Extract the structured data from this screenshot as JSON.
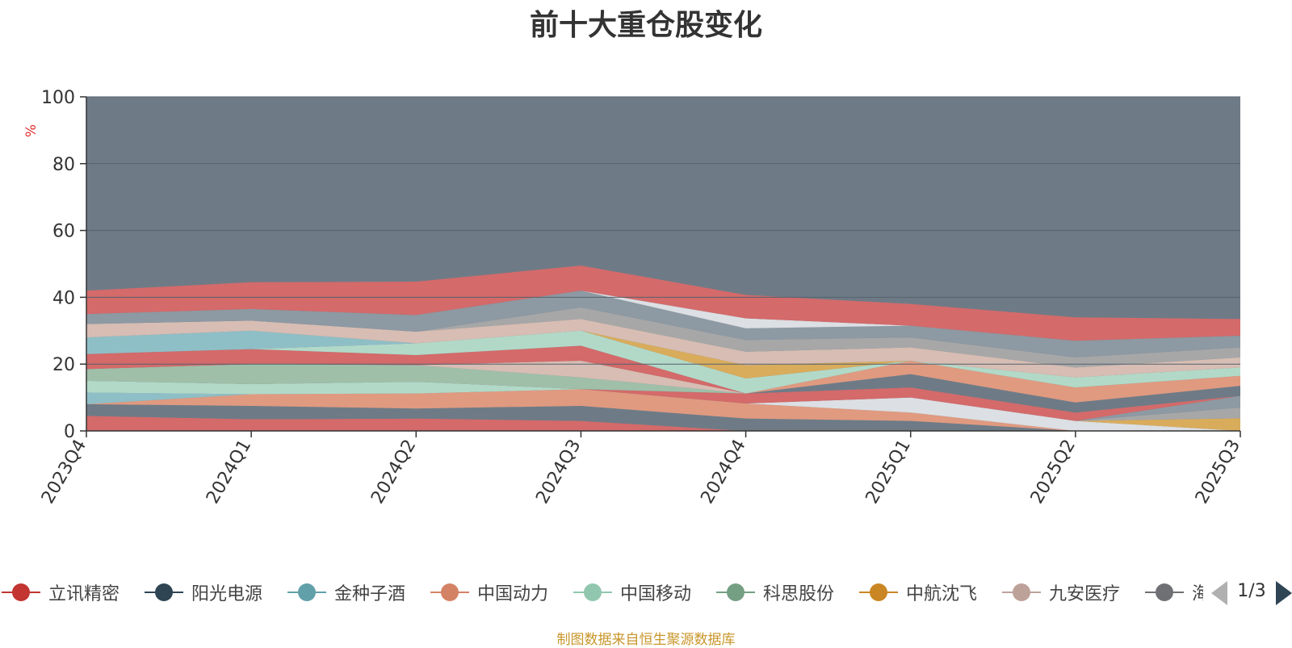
{
  "title": "前十大重仓股变化",
  "source_note": "制图数据来自恒生聚源数据库",
  "legend_page": "1/3",
  "chart_data": {
    "type": "area",
    "title": "前十大重仓股变化",
    "ylabel": "%",
    "ylim": [
      0,
      100
    ],
    "yticks": [
      0,
      20,
      40,
      60,
      80,
      100
    ],
    "grid": true,
    "legend_position": "bottom",
    "x": [
      "2023Q4",
      "2024Q1",
      "2024Q2",
      "2024Q3",
      "2024Q4",
      "2025Q1",
      "2025Q2",
      "2025Q3"
    ],
    "background_color": "#6e7b87",
    "series": [
      {
        "color": "#d46a6a",
        "values": [
          4.5,
          3.5,
          3.7,
          3.0,
          0.0,
          0.0,
          0.0,
          0.0
        ]
      },
      {
        "color": "#6e7b87",
        "values": [
          3.5,
          4.0,
          3.0,
          4.5,
          3.7,
          3.0,
          0.0,
          0.0
        ]
      },
      {
        "color": "#e09a80",
        "values": [
          0.0,
          3.5,
          4.5,
          5.0,
          4.5,
          2.5,
          0.0,
          0.0
        ]
      },
      {
        "color": "#dcdfe3",
        "values": [
          0.0,
          0.0,
          0.0,
          0.0,
          0.0,
          4.5,
          3.0,
          0.0
        ]
      },
      {
        "color": "#d9ac5c",
        "values": [
          0.0,
          0.0,
          0.0,
          0.0,
          0.0,
          0.0,
          0.0,
          3.8
        ]
      },
      {
        "color": "#a7a7a7",
        "values": [
          0.0,
          0.0,
          0.0,
          0.0,
          0.0,
          0.0,
          0.0,
          3.2
        ]
      },
      {
        "color": "#8d99a3",
        "values": [
          0.0,
          0.0,
          0.0,
          0.0,
          0.0,
          0.0,
          0.0,
          3.5
        ]
      },
      {
        "color": "#8fbfc6",
        "values": [
          3.5,
          0.0,
          0.0,
          0.0,
          0.0,
          0.0,
          0.0,
          0.0
        ]
      },
      {
        "color": "#d46a6a",
        "values": [
          0.0,
          0.0,
          0.0,
          0.0,
          3.0,
          3.0,
          2.5,
          0.0
        ]
      },
      {
        "color": "#6e7b87",
        "values": [
          0.0,
          0.0,
          0.0,
          0.0,
          0.0,
          4.0,
          3.0,
          3.0
        ]
      },
      {
        "color": "#e09a80",
        "values": [
          0.0,
          0.0,
          0.0,
          0.0,
          0.0,
          4.0,
          4.5,
          3.0
        ]
      },
      {
        "color": "#b2d9c8",
        "values": [
          3.5,
          3.0,
          3.5,
          0.0,
          0.0,
          0.0,
          0.0,
          0.0
        ]
      },
      {
        "color": "#9fbfa9",
        "values": [
          3.5,
          6.0,
          5.0,
          3.5,
          0.0,
          0.0,
          0.0,
          0.0
        ]
      },
      {
        "color": "#d7bdb3",
        "values": [
          0.0,
          0.0,
          0.0,
          5.0,
          0.0,
          0.0,
          0.0,
          0.0
        ]
      },
      {
        "color": "#d46a6a",
        "values": [
          4.5,
          4.5,
          3.0,
          4.5,
          0.0,
          0.0,
          0.0,
          0.0
        ]
      },
      {
        "color": "#b2d9c8",
        "values": [
          0.0,
          0.0,
          3.5,
          4.5,
          4.5,
          0.0,
          3.0,
          2.5
        ]
      },
      {
        "color": "#d9ac5c",
        "values": [
          0.0,
          0.0,
          0.0,
          0.0,
          4.0,
          0.0,
          0.0,
          0.0
        ]
      },
      {
        "color": "#8fbfc6",
        "values": [
          5.0,
          5.5,
          0.0,
          0.0,
          0.0,
          0.0,
          0.0,
          0.0
        ]
      },
      {
        "color": "#d7bdb3",
        "values": [
          4.0,
          3.0,
          3.5,
          3.5,
          4.0,
          4.0,
          3.0,
          3.0
        ]
      },
      {
        "color": "#a7a7a7",
        "values": [
          0.0,
          0.0,
          0.0,
          3.5,
          3.5,
          3.0,
          3.0,
          3.0
        ]
      },
      {
        "color": "#8d99a3",
        "values": [
          3.0,
          3.5,
          5.0,
          5.0,
          3.5,
          3.5,
          5.0,
          3.5
        ]
      },
      {
        "color": "#dcdfe3",
        "values": [
          0.0,
          0.0,
          0.0,
          0.0,
          3.0,
          0.0,
          0.0,
          0.0
        ]
      },
      {
        "color": "#d46a6a",
        "values": [
          7.0,
          8.0,
          10.0,
          7.5,
          7.0,
          6.5,
          7.0,
          5.0
        ]
      }
    ],
    "legend": [
      {
        "name": "立讯精密",
        "color": "#c23531"
      },
      {
        "name": "阳光电源",
        "color": "#2f4554"
      },
      {
        "name": "金种子酒",
        "color": "#61a0a8"
      },
      {
        "name": "中国动力",
        "color": "#d48265"
      },
      {
        "name": "中国移动",
        "color": "#91c7ae"
      },
      {
        "name": "科思股份",
        "color": "#749f83"
      },
      {
        "name": "中航沈飞",
        "color": "#ca8622"
      },
      {
        "name": "九安医疗",
        "color": "#bda29a"
      },
      {
        "name": "海",
        "color": "#6e7074"
      }
    ]
  }
}
